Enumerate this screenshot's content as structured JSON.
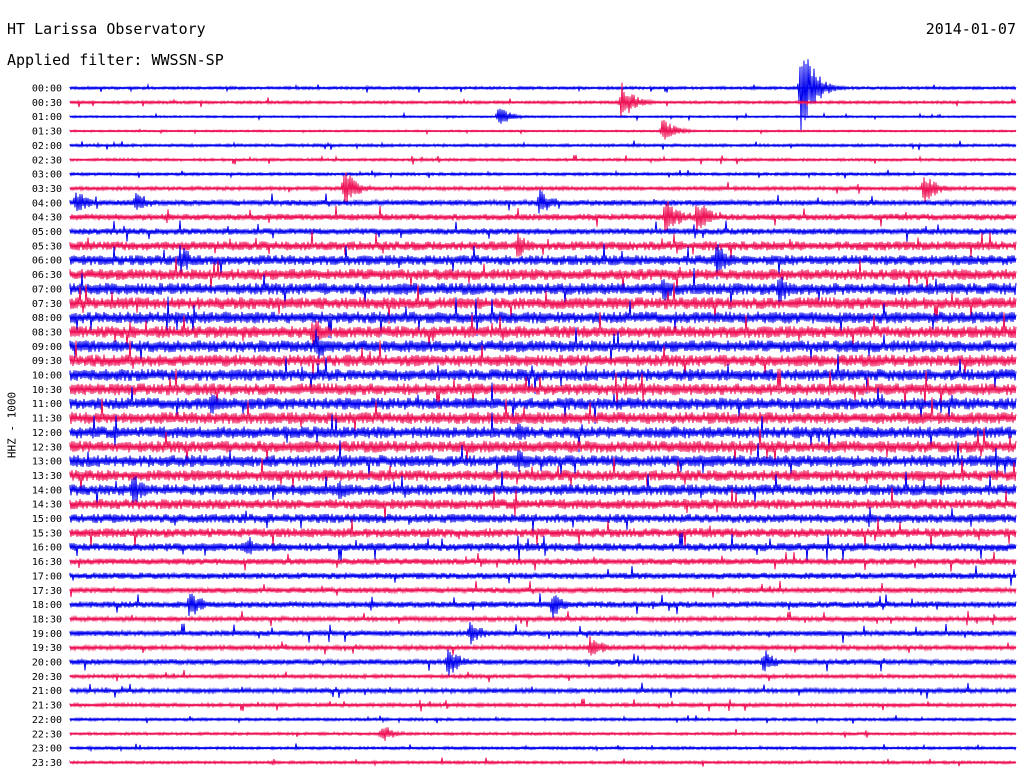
{
  "header": {
    "title": "HT Larissa Observatory",
    "filter": "Applied filter: WWSSN-SP",
    "date": "2014-01-07"
  },
  "chart_data": {
    "type": "line",
    "title": "HT Larissa Observatory",
    "subtitle": "Applied filter: WWSSN-SP",
    "date": "2014-01-07",
    "ylabel": "HHZ - 1000",
    "colors": {
      "even_trace": "#0000ee",
      "odd_trace": "#ee1155"
    },
    "tick_labels": [
      "00:00",
      "00:30",
      "01:00",
      "01:30",
      "02:00",
      "02:30",
      "03:00",
      "03:30",
      "04:00",
      "04:30",
      "05:00",
      "05:30",
      "06:00",
      "06:30",
      "07:00",
      "07:30",
      "08:00",
      "08:30",
      "09:00",
      "09:30",
      "10:00",
      "10:30",
      "11:00",
      "11:30",
      "12:00",
      "12:30",
      "13:00",
      "13:30",
      "14:00",
      "14:30",
      "15:00",
      "15:30",
      "16:00",
      "16:30",
      "17:00",
      "17:30",
      "18:00",
      "18:30",
      "19:00",
      "19:30",
      "20:00",
      "20:30",
      "21:00",
      "21:30",
      "22:00",
      "22:30",
      "23:00",
      "23:30"
    ],
    "trace_minutes": 30,
    "noise_amplitude": [
      0.3,
      0.3,
      0.2,
      0.2,
      0.3,
      0.3,
      0.3,
      0.4,
      0.6,
      0.7,
      0.7,
      1.0,
      1.1,
      1.2,
      1.3,
      1.3,
      1.3,
      1.3,
      1.3,
      1.3,
      1.3,
      1.3,
      1.3,
      1.3,
      1.3,
      1.3,
      1.3,
      1.2,
      1.2,
      1.1,
      1.0,
      1.0,
      0.9,
      0.7,
      0.7,
      0.6,
      0.7,
      0.5,
      0.6,
      0.5,
      0.6,
      0.4,
      0.5,
      0.4,
      0.3,
      0.3,
      0.3,
      0.3
    ],
    "events": [
      {
        "trace": 0,
        "minute": 23.2,
        "amplitude": 8.0
      },
      {
        "trace": 1,
        "minute": 17.5,
        "amplitude": 3.0
      },
      {
        "trace": 2,
        "minute": 13.6,
        "amplitude": 1.5
      },
      {
        "trace": 3,
        "minute": 18.8,
        "amplitude": 2.0
      },
      {
        "trace": 7,
        "minute": 8.7,
        "amplitude": 3.0
      },
      {
        "trace": 7,
        "minute": 27.1,
        "amplitude": 2.5
      },
      {
        "trace": 8,
        "minute": 0.2,
        "amplitude": 2.0
      },
      {
        "trace": 8,
        "minute": 2.1,
        "amplitude": 2.0
      },
      {
        "trace": 8,
        "minute": 14.9,
        "amplitude": 2.0
      },
      {
        "trace": 9,
        "minute": 18.9,
        "amplitude": 3.0
      },
      {
        "trace": 9,
        "minute": 19.9,
        "amplitude": 3.0
      },
      {
        "trace": 11,
        "minute": 14.2,
        "amplitude": 2.0
      },
      {
        "trace": 12,
        "minute": 3.5,
        "amplitude": 2.5
      },
      {
        "trace": 12,
        "minute": 20.5,
        "amplitude": 3.0
      },
      {
        "trace": 14,
        "minute": 18.8,
        "amplitude": 2.0
      },
      {
        "trace": 14,
        "minute": 22.5,
        "amplitude": 2.5
      },
      {
        "trace": 17,
        "minute": 7.7,
        "amplitude": 2.5
      },
      {
        "trace": 18,
        "minute": 7.8,
        "amplitude": 2.5
      },
      {
        "trace": 22,
        "minute": 4.5,
        "amplitude": 2.0
      },
      {
        "trace": 24,
        "minute": 14.2,
        "amplitude": 2.0
      },
      {
        "trace": 26,
        "minute": 14.2,
        "amplitude": 2.0
      },
      {
        "trace": 28,
        "minute": 2.0,
        "amplitude": 2.5
      },
      {
        "trace": 28,
        "minute": 8.5,
        "amplitude": 2.0
      },
      {
        "trace": 32,
        "minute": 5.6,
        "amplitude": 2.0
      },
      {
        "trace": 36,
        "minute": 3.8,
        "amplitude": 2.5
      },
      {
        "trace": 36,
        "minute": 15.3,
        "amplitude": 2.0
      },
      {
        "trace": 38,
        "minute": 12.7,
        "amplitude": 2.0
      },
      {
        "trace": 39,
        "minute": 16.5,
        "amplitude": 2.0
      },
      {
        "trace": 40,
        "minute": 12.0,
        "amplitude": 2.5
      },
      {
        "trace": 40,
        "minute": 22.0,
        "amplitude": 2.0
      },
      {
        "trace": 45,
        "minute": 9.9,
        "amplitude": 1.5
      }
    ]
  }
}
